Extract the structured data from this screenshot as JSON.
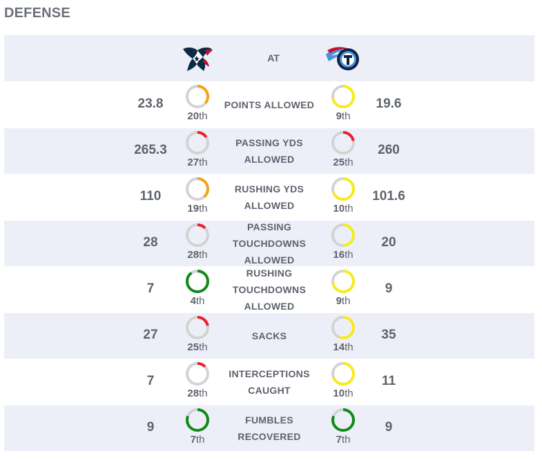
{
  "section": {
    "title": "DEFENSE"
  },
  "header": {
    "at_label": "AT",
    "away_logo_icon": "houston-texans-logo-icon",
    "home_logo_icon": "tennessee-titans-logo-icon"
  },
  "colors": {
    "row_shade": "#edeff8",
    "ring_track": "#d3d3d3",
    "rank_good": "#118a1a",
    "rank_mid": "#f7ec1a",
    "rank_weak": "#f5a31d",
    "rank_bad": "#e8202a"
  },
  "rows": [
    {
      "label": "POINTS ALLOWED",
      "away": {
        "value": "23.8",
        "rank": "20",
        "suffix": "th",
        "fill": 0.36,
        "color": "#f5a31d"
      },
      "home": {
        "value": "19.6",
        "rank": "9",
        "suffix": "th",
        "fill": 0.72,
        "color": "#f7ec1a"
      }
    },
    {
      "label": "PASSING YDS ALLOWED",
      "away": {
        "value": "265.3",
        "rank": "27",
        "suffix": "th",
        "fill": 0.16,
        "color": "#e8202a"
      },
      "home": {
        "value": "260",
        "rank": "25",
        "suffix": "th",
        "fill": 0.22,
        "color": "#e8202a"
      }
    },
    {
      "label": "RUSHING YDS ALLOWED",
      "away": {
        "value": "110",
        "rank": "19",
        "suffix": "th",
        "fill": 0.39,
        "color": "#f5a31d"
      },
      "home": {
        "value": "101.6",
        "rank": "10",
        "suffix": "th",
        "fill": 0.69,
        "color": "#f7ec1a"
      }
    },
    {
      "label": "PASSING TOUCHDOWNS ALLOWED",
      "away": {
        "value": "28",
        "rank": "28",
        "suffix": "th",
        "fill": 0.13,
        "color": "#e8202a"
      },
      "home": {
        "value": "20",
        "rank": "16",
        "suffix": "th",
        "fill": 0.5,
        "color": "#f7ec1a"
      }
    },
    {
      "label": "RUSHING TOUCHDOWNS ALLOWED",
      "away": {
        "value": "7",
        "rank": "4",
        "suffix": "th",
        "fill": 0.9,
        "color": "#118a1a"
      },
      "home": {
        "value": "9",
        "rank": "9",
        "suffix": "th",
        "fill": 0.72,
        "color": "#f7ec1a"
      }
    },
    {
      "label": "SACKS",
      "away": {
        "value": "27",
        "rank": "25",
        "suffix": "th",
        "fill": 0.22,
        "color": "#e8202a"
      },
      "home": {
        "value": "35",
        "rank": "14",
        "suffix": "th",
        "fill": 0.56,
        "color": "#f7ec1a"
      }
    },
    {
      "label": "INTERCEPTIONS CAUGHT",
      "away": {
        "value": "7",
        "rank": "28",
        "suffix": "th",
        "fill": 0.13,
        "color": "#e8202a"
      },
      "home": {
        "value": "11",
        "rank": "10",
        "suffix": "th",
        "fill": 0.69,
        "color": "#f7ec1a"
      }
    },
    {
      "label": "FUMBLES RECOVERED",
      "away": {
        "value": "9",
        "rank": "7",
        "suffix": "th",
        "fill": 0.81,
        "color": "#118a1a"
      },
      "home": {
        "value": "9",
        "rank": "7",
        "suffix": "th",
        "fill": 0.81,
        "color": "#118a1a"
      }
    }
  ]
}
